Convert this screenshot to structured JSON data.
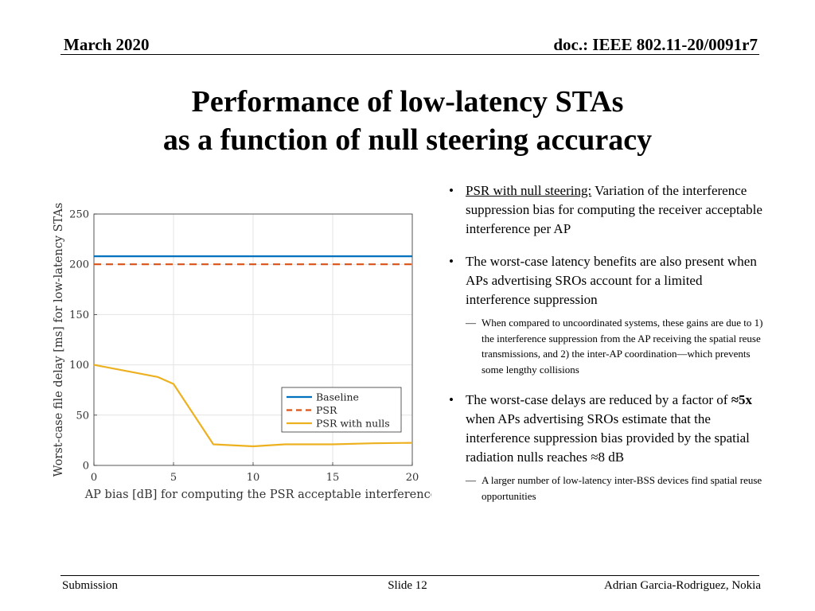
{
  "header": {
    "date": "March 2020",
    "doc": "doc.: IEEE 802.11-20/0091r7"
  },
  "title": {
    "line1": "Performance of low-latency STAs",
    "line2": "as a function of null steering accuracy"
  },
  "bullets": [
    {
      "lead": "PSR with null steering:",
      "text": " Variation of the interference suppression bias for computing the receiver acceptable interference per AP",
      "sub": []
    },
    {
      "lead": "",
      "text": "The worst-case latency benefits are also present when APs advertising SROs account for a limited interference suppression",
      "sub": [
        "When compared to uncoordinated systems, these gains are due to 1) the interference suppression from the AP receiving the spatial reuse transmissions, and 2) the inter-AP coordination—which prevents some lengthy collisions"
      ]
    },
    {
      "lead": "",
      "text_a": "The worst-case delays are reduced by a factor of ",
      "bold": "≈5x",
      "text_b": " when APs advertising SROs estimate that the interference suppression bias provided by the spatial radiation nulls reaches ≈8 dB",
      "sub": [
        "A larger number of low-latency inter-BSS devices find spatial reuse opportunities"
      ]
    }
  ],
  "footer": {
    "left": "Submission",
    "center": "Slide 12",
    "right": "Adrian Garcia-Rodriguez, Nokia"
  },
  "chart_data": {
    "type": "line",
    "title": "",
    "xlabel": "AP bias [dB] for computing the PSR acceptable interference",
    "ylabel": "Worst-case file delay [ms] for low-latency STAs",
    "xlim": [
      0,
      20
    ],
    "ylim": [
      0,
      250
    ],
    "xticks": [
      0,
      5,
      10,
      15,
      20
    ],
    "yticks": [
      0,
      50,
      100,
      150,
      200,
      250
    ],
    "grid": true,
    "legend_position": "lower-right",
    "series": [
      {
        "name": "Baseline",
        "color": "#0072BD",
        "dash": "solid",
        "x": [
          0,
          20
        ],
        "y": [
          208,
          208
        ]
      },
      {
        "name": "PSR",
        "color": "#D95319",
        "dash": "dashed",
        "x": [
          0,
          20
        ],
        "y": [
          200,
          200
        ]
      },
      {
        "name": "PSR with nulls",
        "color": "#EDB120",
        "dash": "solid",
        "x": [
          0,
          2,
          4,
          5,
          7.5,
          10,
          12,
          15,
          17.5,
          20
        ],
        "y": [
          100,
          94,
          88,
          81,
          21,
          19,
          21,
          21,
          22,
          22.5
        ]
      }
    ]
  }
}
